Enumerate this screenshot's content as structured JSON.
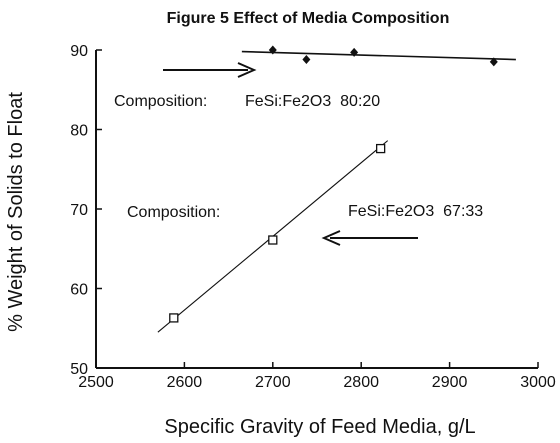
{
  "chart_data": {
    "type": "scatter",
    "title": "Figure 5  Effect of Media Composition",
    "xlabel": "Specific Gravity of Feed Media, g/L",
    "ylabel": "% Weight of Solids to Float",
    "xlim": [
      2500,
      3000
    ],
    "ylim": [
      50,
      90
    ],
    "x_ticks": [
      "2500",
      "2600",
      "2700",
      "2800",
      "2900",
      "3000"
    ],
    "y_ticks": [
      "50",
      "60",
      "70",
      "80",
      "90"
    ],
    "grid": false,
    "series": [
      {
        "marker": "filled-diamond",
        "x": [
          2700,
          2738,
          2792,
          2950
        ],
        "y": [
          90.0,
          88.8,
          89.7,
          88.5
        ],
        "fit_line": {
          "x": [
            2665,
            2975
          ],
          "y": [
            89.8,
            88.8
          ]
        }
      },
      {
        "marker": "open-square",
        "x": [
          2588,
          2700,
          2822
        ],
        "y": [
          56.3,
          66.1,
          77.6
        ],
        "fit_line": {
          "x": [
            2570,
            2830
          ],
          "y": [
            54.5,
            78.6
          ]
        }
      }
    ],
    "annotations": {
      "upper_label": "Composition:",
      "upper_ratio": "FeSi:Fe2O3  80:20",
      "lower_label": "Composition:",
      "lower_ratio": "FeSi:Fe2O3  67:33"
    }
  }
}
